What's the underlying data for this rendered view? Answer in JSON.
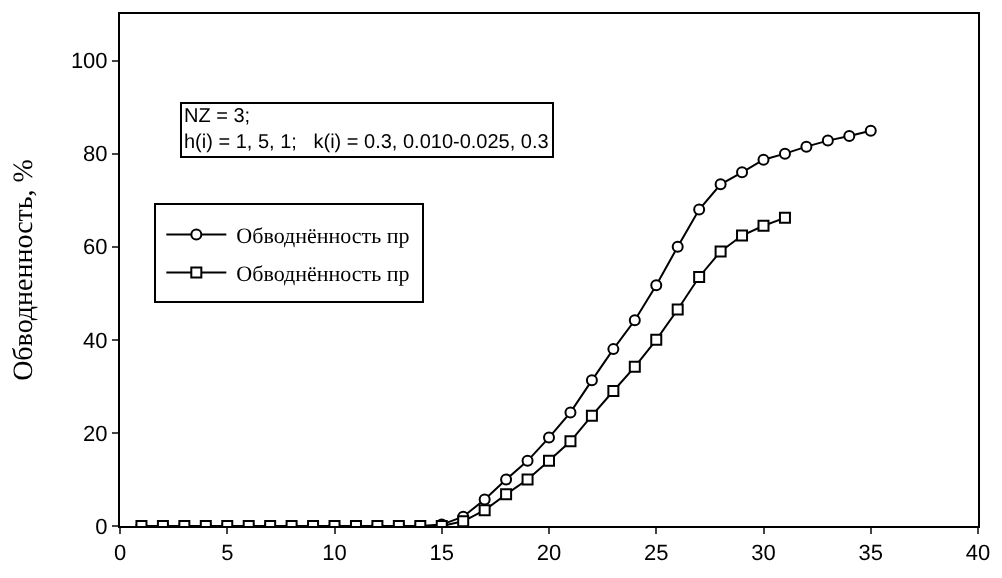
{
  "chart_data": {
    "type": "line",
    "ylabel": "Обводненность, %",
    "x": [
      1,
      2,
      3,
      4,
      5,
      6,
      7,
      8,
      9,
      10,
      11,
      12,
      13,
      14,
      15,
      16,
      17,
      18,
      19,
      20,
      21,
      22,
      23,
      24,
      25,
      26,
      27,
      28,
      29,
      30,
      31,
      32,
      33,
      34,
      35
    ],
    "series": [
      {
        "name": "Обводнённость пр",
        "color": "#000000",
        "marker": "circle",
        "line_style": "solid",
        "values": [
          0,
          0,
          0,
          0,
          0,
          0,
          0,
          0,
          0,
          0,
          0,
          0,
          0,
          0,
          0.3,
          2,
          5.7,
          10,
          14,
          19,
          24.4,
          31.3,
          38,
          44.2,
          51.7,
          60,
          68,
          73.4,
          76,
          78.7,
          80,
          81.5,
          82.8,
          83.8,
          84.9
        ]
      },
      {
        "name": "Обводнённость пр",
        "color": "#000000",
        "marker": "square",
        "line_style": "solid",
        "values": [
          0,
          0,
          0,
          0,
          0,
          0,
          0,
          0,
          0,
          0,
          0,
          0,
          0,
          0,
          0,
          1,
          3.4,
          6.8,
          10,
          14,
          18.2,
          23.7,
          29,
          34.2,
          40,
          46.5,
          53.5,
          59,
          62.4,
          64.5,
          66.2,
          null,
          null,
          null,
          null
        ]
      }
    ],
    "annotations": [
      "NZ = 3;\nh(i) = 1, 5, 1;   k(i) = 0.3, 0.010-0.025, 0.3"
    ],
    "xlim": [
      0,
      40
    ],
    "xticks": [
      0,
      5,
      10,
      15,
      20,
      25,
      30,
      35,
      40
    ],
    "ylim": [
      0,
      110
    ],
    "yticks": [
      0,
      20,
      40,
      60,
      80,
      100
    ],
    "grid": false,
    "legend": "top left"
  }
}
